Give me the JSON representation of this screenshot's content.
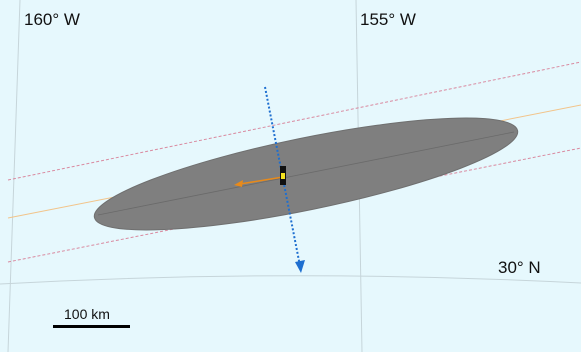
{
  "map": {
    "graticule_labels": {
      "lon_left": "160° W",
      "lon_right": "155° W",
      "lat": "30° N"
    },
    "scale_bar": {
      "label": "100 km"
    },
    "colors": {
      "ocean": "#e6f8fd",
      "graticule": "#c6d5da",
      "ellipse": "#7f7f7f",
      "orbit_center": "#f2c48a",
      "swath_edge": "#d98aa0",
      "velocity_arrow": "#1e6fd0",
      "offset_arrow": "#e88a1a",
      "marker": "#f4e21f"
    }
  }
}
